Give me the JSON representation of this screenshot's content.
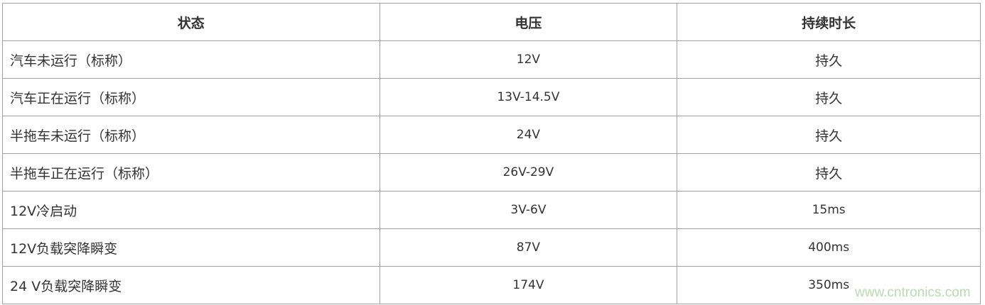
{
  "headers": [
    "状态",
    "电压",
    "持续时长"
  ],
  "rows": [
    [
      "汽车未运行（标称）",
      "12V",
      "持久"
    ],
    [
      "汽车正在运行（标称）",
      "13V-14.5V",
      "持久"
    ],
    [
      "半拖车未运行（标称）",
      "24V",
      "持久"
    ],
    [
      "半拖车正在运行（标称）",
      "26V-29V",
      "持久"
    ],
    [
      "12V冷启动",
      "3V-6V",
      "15ms"
    ],
    [
      "12V负载突降瞬变",
      "87V",
      "400ms"
    ],
    [
      "24 V负载突降瞬变",
      "174V",
      "350ms"
    ]
  ],
  "watermark": "www.cntronics.com"
}
